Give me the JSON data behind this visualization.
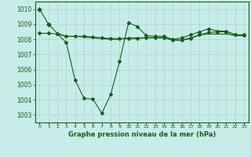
{
  "xlabel": "Graphe pression niveau de la mer (hPa)",
  "background_color": "#c8ede8",
  "grid_color": "#a8d8d0",
  "line_color": "#1a5c1a",
  "marker_color": "#1a5c1a",
  "ylim": [
    1002.5,
    1010.5
  ],
  "xlim": [
    -0.5,
    23.5
  ],
  "yticks": [
    1003,
    1004,
    1005,
    1006,
    1007,
    1008,
    1009,
    1010
  ],
  "xticks": [
    0,
    1,
    2,
    3,
    4,
    5,
    6,
    7,
    8,
    9,
    10,
    11,
    12,
    13,
    14,
    15,
    16,
    17,
    18,
    19,
    20,
    21,
    22,
    23
  ],
  "series1_x": [
    0,
    1,
    2,
    3,
    4,
    5,
    6,
    7,
    8,
    9,
    10,
    11,
    12,
    13,
    14,
    15,
    16,
    17,
    18,
    19,
    20,
    21,
    22,
    23
  ],
  "series1_y": [
    1010.0,
    1009.0,
    1008.4,
    1008.2,
    1008.2,
    1008.15,
    1008.1,
    1008.05,
    1008.0,
    1008.0,
    1008.1,
    1008.1,
    1008.1,
    1008.1,
    1008.1,
    1007.95,
    1007.95,
    1008.1,
    1008.3,
    1008.35,
    1008.35,
    1008.35,
    1008.25,
    1008.25
  ],
  "series2_x": [
    0,
    1,
    2,
    3,
    4,
    5,
    6,
    7,
    8,
    9,
    10,
    11,
    12,
    13,
    14,
    15,
    16,
    17,
    18,
    19,
    20,
    21,
    22,
    23
  ],
  "series2_y": [
    1008.4,
    1008.4,
    1008.35,
    1007.8,
    1005.3,
    1004.1,
    1004.05,
    1003.1,
    1004.35,
    1006.55,
    1009.1,
    1008.85,
    1008.25,
    1008.2,
    1008.2,
    1008.0,
    1008.1,
    1008.3,
    1008.5,
    1008.7,
    1008.55,
    1008.55,
    1008.3,
    1008.25
  ],
  "series3_x": [
    2,
    3,
    4,
    5,
    6,
    7,
    8,
    9,
    10,
    11,
    12,
    13,
    14,
    15,
    16,
    17,
    18,
    19,
    20,
    21,
    22,
    23
  ],
  "series3_y": [
    1008.35,
    1008.2,
    1008.2,
    1008.2,
    1008.15,
    1008.1,
    1008.05,
    1008.05,
    1008.05,
    1008.05,
    1008.1,
    1008.1,
    1008.1,
    1007.95,
    1007.95,
    1008.05,
    1008.3,
    1008.45,
    1008.5,
    1008.5,
    1008.3,
    1008.3
  ]
}
